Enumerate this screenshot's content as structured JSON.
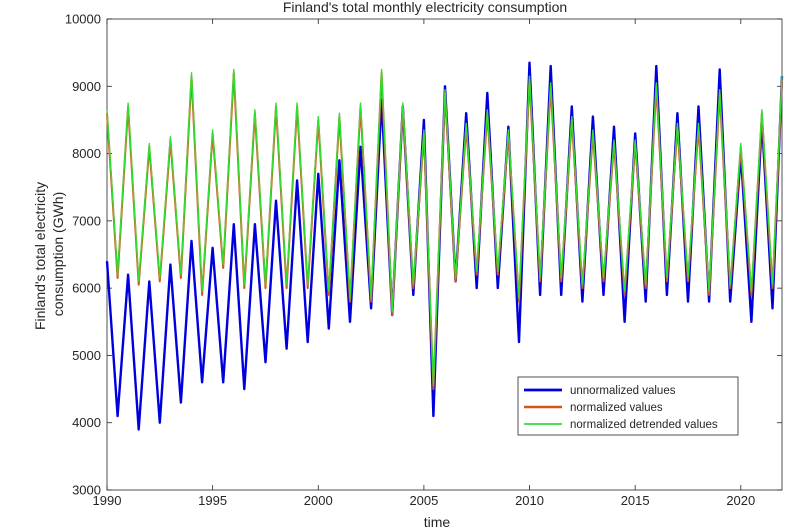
{
  "chart_data": {
    "type": "line",
    "title": "Finland's total monthly electricity consumption",
    "xlabel": "time",
    "ylabel": [
      "Finland's total electricity",
      "consumption (GWh)"
    ],
    "xlim": [
      1990,
      2021.95
    ],
    "ylim": [
      3000,
      10000
    ],
    "xticks": [
      1990,
      1995,
      2000,
      2005,
      2010,
      2015,
      2020
    ],
    "yticks": [
      3000,
      4000,
      5000,
      6000,
      7000,
      8000,
      9000,
      10000
    ],
    "grid": false,
    "legend_position": "lower-right",
    "series": [
      {
        "name": "unnormalized values",
        "color": "#0000dd",
        "points": [
          [
            1990.0,
            6400
          ],
          [
            1990.5,
            4100
          ],
          [
            1991.0,
            6200
          ],
          [
            1991.5,
            3900
          ],
          [
            1992.0,
            6100
          ],
          [
            1992.5,
            4000
          ],
          [
            1993.0,
            6350
          ],
          [
            1993.5,
            4300
          ],
          [
            1994.0,
            6700
          ],
          [
            1994.5,
            4600
          ],
          [
            1995.0,
            6600
          ],
          [
            1995.5,
            4600
          ],
          [
            1996.0,
            6950
          ],
          [
            1996.5,
            4500
          ],
          [
            1997.0,
            6950
          ],
          [
            1997.5,
            4900
          ],
          [
            1998.0,
            7300
          ],
          [
            1998.5,
            5100
          ],
          [
            1999.0,
            7600
          ],
          [
            1999.5,
            5200
          ],
          [
            2000.0,
            7700
          ],
          [
            2000.5,
            5400
          ],
          [
            2001.0,
            7900
          ],
          [
            2001.5,
            5500
          ],
          [
            2002.0,
            8100
          ],
          [
            2002.5,
            5700
          ],
          [
            2003.0,
            8800
          ],
          [
            2003.5,
            5600
          ],
          [
            2004.0,
            8700
          ],
          [
            2004.5,
            5900
          ],
          [
            2005.0,
            8500
          ],
          [
            2005.45,
            4100
          ],
          [
            2006.0,
            9000
          ],
          [
            2006.5,
            6100
          ],
          [
            2007.0,
            8600
          ],
          [
            2007.5,
            6000
          ],
          [
            2008.0,
            8900
          ],
          [
            2008.5,
            6000
          ],
          [
            2009.0,
            8400
          ],
          [
            2009.5,
            5200
          ],
          [
            2010.0,
            9350
          ],
          [
            2010.5,
            5900
          ],
          [
            2011.0,
            9300
          ],
          [
            2011.5,
            5900
          ],
          [
            2012.0,
            8700
          ],
          [
            2012.5,
            5800
          ],
          [
            2013.0,
            8550
          ],
          [
            2013.5,
            5900
          ],
          [
            2014.0,
            8400
          ],
          [
            2014.5,
            5500
          ],
          [
            2015.0,
            8300
          ],
          [
            2015.5,
            5800
          ],
          [
            2016.0,
            9300
          ],
          [
            2016.5,
            5900
          ],
          [
            2017.0,
            8600
          ],
          [
            2017.5,
            5800
          ],
          [
            2018.0,
            8700
          ],
          [
            2018.5,
            5800
          ],
          [
            2019.0,
            9250
          ],
          [
            2019.5,
            5800
          ],
          [
            2020.0,
            8000
          ],
          [
            2020.5,
            5500
          ],
          [
            2021.0,
            8500
          ],
          [
            2021.5,
            5700
          ],
          [
            2021.95,
            9150
          ]
        ]
      },
      {
        "name": "normalized values",
        "color": "#d95319",
        "points": [
          [
            1990.0,
            8600
          ],
          [
            1990.5,
            6150
          ],
          [
            1991.0,
            8700
          ],
          [
            1991.5,
            6050
          ],
          [
            1992.0,
            8100
          ],
          [
            1992.5,
            6100
          ],
          [
            1993.0,
            8200
          ],
          [
            1993.5,
            6150
          ],
          [
            1994.0,
            9150
          ],
          [
            1994.5,
            5900
          ],
          [
            1995.0,
            8300
          ],
          [
            1995.5,
            6300
          ],
          [
            1996.0,
            9200
          ],
          [
            1996.5,
            6000
          ],
          [
            1997.0,
            8600
          ],
          [
            1997.5,
            6000
          ],
          [
            1998.0,
            8700
          ],
          [
            1998.5,
            6000
          ],
          [
            1999.0,
            8700
          ],
          [
            1999.5,
            6000
          ],
          [
            2000.0,
            8500
          ],
          [
            2000.5,
            5900
          ],
          [
            2001.0,
            8550
          ],
          [
            2001.5,
            5800
          ],
          [
            2002.0,
            8700
          ],
          [
            2002.5,
            5800
          ],
          [
            2003.0,
            9200
          ],
          [
            2003.5,
            5600
          ],
          [
            2004.0,
            8700
          ],
          [
            2004.5,
            6000
          ],
          [
            2005.0,
            8300
          ],
          [
            2005.45,
            4500
          ],
          [
            2006.0,
            8900
          ],
          [
            2006.5,
            6100
          ],
          [
            2007.0,
            8400
          ],
          [
            2007.5,
            6200
          ],
          [
            2008.0,
            8600
          ],
          [
            2008.5,
            6200
          ],
          [
            2009.0,
            8300
          ],
          [
            2009.5,
            5800
          ],
          [
            2010.0,
            9100
          ],
          [
            2010.5,
            6100
          ],
          [
            2011.0,
            9000
          ],
          [
            2011.5,
            6100
          ],
          [
            2012.0,
            8500
          ],
          [
            2012.5,
            6000
          ],
          [
            2013.0,
            8300
          ],
          [
            2013.5,
            6100
          ],
          [
            2014.0,
            8150
          ],
          [
            2014.5,
            5900
          ],
          [
            2015.0,
            8150
          ],
          [
            2015.5,
            6000
          ],
          [
            2016.0,
            9000
          ],
          [
            2016.5,
            6100
          ],
          [
            2017.0,
            8400
          ],
          [
            2017.5,
            6100
          ],
          [
            2018.0,
            8400
          ],
          [
            2018.5,
            5900
          ],
          [
            2019.0,
            8900
          ],
          [
            2019.5,
            6000
          ],
          [
            2020.0,
            8100
          ],
          [
            2020.5,
            5900
          ],
          [
            2021.0,
            8600
          ],
          [
            2021.5,
            6000
          ],
          [
            2021.95,
            9100
          ]
        ]
      },
      {
        "name": "normalized detrended values",
        "color": "#33dd33",
        "points": [
          [
            1990.0,
            8650
          ],
          [
            1990.5,
            6200
          ],
          [
            1991.0,
            8750
          ],
          [
            1991.5,
            6100
          ],
          [
            1992.0,
            8150
          ],
          [
            1992.5,
            6150
          ],
          [
            1993.0,
            8250
          ],
          [
            1993.5,
            6200
          ],
          [
            1994.0,
            9200
          ],
          [
            1994.5,
            5950
          ],
          [
            1995.0,
            8350
          ],
          [
            1995.5,
            6350
          ],
          [
            1996.0,
            9250
          ],
          [
            1996.5,
            6050
          ],
          [
            1997.0,
            8650
          ],
          [
            1997.5,
            6050
          ],
          [
            1998.0,
            8750
          ],
          [
            1998.5,
            6050
          ],
          [
            1999.0,
            8750
          ],
          [
            1999.5,
            6050
          ],
          [
            2000.0,
            8550
          ],
          [
            2000.5,
            5950
          ],
          [
            2001.0,
            8600
          ],
          [
            2001.5,
            5850
          ],
          [
            2002.0,
            8750
          ],
          [
            2002.5,
            5850
          ],
          [
            2003.0,
            9250
          ],
          [
            2003.5,
            5650
          ],
          [
            2004.0,
            8750
          ],
          [
            2004.5,
            6050
          ],
          [
            2005.0,
            8350
          ],
          [
            2005.45,
            4550
          ],
          [
            2006.0,
            8950
          ],
          [
            2006.5,
            6150
          ],
          [
            2007.0,
            8450
          ],
          [
            2007.5,
            6250
          ],
          [
            2008.0,
            8650
          ],
          [
            2008.5,
            6250
          ],
          [
            2009.0,
            8350
          ],
          [
            2009.5,
            5850
          ],
          [
            2010.0,
            9150
          ],
          [
            2010.5,
            6150
          ],
          [
            2011.0,
            9050
          ],
          [
            2011.5,
            6150
          ],
          [
            2012.0,
            8550
          ],
          [
            2012.5,
            6050
          ],
          [
            2013.0,
            8350
          ],
          [
            2013.5,
            6150
          ],
          [
            2014.0,
            8200
          ],
          [
            2014.5,
            5950
          ],
          [
            2015.0,
            8200
          ],
          [
            2015.5,
            6050
          ],
          [
            2016.0,
            9050
          ],
          [
            2016.5,
            6150
          ],
          [
            2017.0,
            8450
          ],
          [
            2017.5,
            6150
          ],
          [
            2018.0,
            8450
          ],
          [
            2018.5,
            5950
          ],
          [
            2019.0,
            8950
          ],
          [
            2019.5,
            6050
          ],
          [
            2020.0,
            8150
          ],
          [
            2020.5,
            5950
          ],
          [
            2021.0,
            8650
          ],
          [
            2021.5,
            6050
          ],
          [
            2021.95,
            9150
          ]
        ]
      }
    ]
  }
}
